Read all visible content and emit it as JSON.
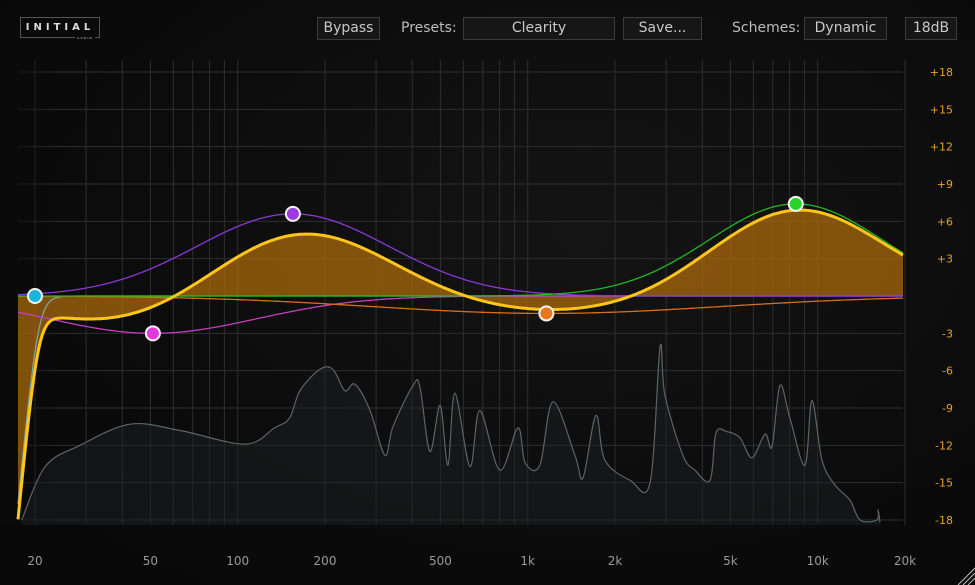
{
  "header": {
    "logo": "INITIAL",
    "logo_sub": "AUDIO",
    "bypass_label": "Bypass",
    "presets_label": "Presets:",
    "preset_value": "Clearity",
    "save_label": "Save...",
    "schemes_label": "Schemes:",
    "scheme_value": "Dynamic",
    "range_label": "18dB"
  },
  "colors": {
    "curve": "#ffc619",
    "fill": "#b06c0c",
    "grid": "#2e2e2e",
    "db_labels": "#e6a323",
    "spectrum": "#5a6468"
  },
  "chart_data": {
    "type": "line",
    "x_scale": "log",
    "xlim": [
      17.7,
      20000
    ],
    "ylim": [
      -18,
      18
    ],
    "x_ticks": [
      {
        "value": 20,
        "label": "20"
      },
      {
        "value": 50,
        "label": "50"
      },
      {
        "value": 100,
        "label": "100"
      },
      {
        "value": 200,
        "label": "200"
      },
      {
        "value": 500,
        "label": "500"
      },
      {
        "value": 1000,
        "label": "1k"
      },
      {
        "value": 2000,
        "label": "2k"
      },
      {
        "value": 5000,
        "label": "5k"
      },
      {
        "value": 10000,
        "label": "10k"
      },
      {
        "value": 20000,
        "label": "20k"
      }
    ],
    "y_ticks": [
      {
        "value": 18,
        "label": "+18"
      },
      {
        "value": 15,
        "label": "+15"
      },
      {
        "value": 12,
        "label": "+12"
      },
      {
        "value": 9,
        "label": "+9"
      },
      {
        "value": 6,
        "label": "+6"
      },
      {
        "value": 3,
        "label": "+3"
      },
      {
        "value": -3,
        "label": "-3"
      },
      {
        "value": -6,
        "label": "-6"
      },
      {
        "value": -9,
        "label": "-9"
      },
      {
        "value": -12,
        "label": "-12"
      },
      {
        "value": -15,
        "label": "-15"
      },
      {
        "value": -18,
        "label": "-18"
      }
    ],
    "grid": true,
    "bands": [
      {
        "type": "highpass",
        "freq": 20.5,
        "gain": 0,
        "order": 12,
        "color": "#17b6dc",
        "curve_color": "#7fa59a"
      },
      {
        "type": "bell",
        "freq": 51,
        "gain": -3.0,
        "width": 0.36,
        "color": "#e23ad9",
        "curve_color": "#c43fbf"
      },
      {
        "type": "bell",
        "freq": 155,
        "gain": 6.6,
        "width": 0.33,
        "color": "#9a3ae0",
        "curve_color": "#8a38d8"
      },
      {
        "type": "bell",
        "freq": 1160,
        "gain": -1.4,
        "width": 0.6,
        "color": "#e8761a",
        "curve_color": "#d86c18"
      },
      {
        "type": "bell",
        "freq": 8400,
        "gain": 7.4,
        "width": 0.3,
        "color": "#2ad22a",
        "curve_color": "#22b822"
      }
    ],
    "spectrum": [
      [
        18,
        -18
      ],
      [
        21.7,
        -13.7
      ],
      [
        28.6,
        -12
      ],
      [
        42.5,
        -10.3
      ],
      [
        63,
        -10.8
      ],
      [
        106,
        -11.9
      ],
      [
        134,
        -10.6
      ],
      [
        151,
        -9.8
      ],
      [
        164,
        -7.6
      ],
      [
        192,
        -5.9
      ],
      [
        213,
        -5.9
      ],
      [
        234,
        -7.6
      ],
      [
        254,
        -7.1
      ],
      [
        286,
        -9.2
      ],
      [
        322,
        -12.8
      ],
      [
        343,
        -10.5
      ],
      [
        402,
        -7.2
      ],
      [
        425,
        -7.3
      ],
      [
        460,
        -12.5
      ],
      [
        499,
        -8.8
      ],
      [
        531,
        -13.6
      ],
      [
        561,
        -7.8
      ],
      [
        632,
        -13.7
      ],
      [
        684,
        -9.2
      ],
      [
        801,
        -14
      ],
      [
        925,
        -10.6
      ],
      [
        980,
        -13.4
      ],
      [
        1101,
        -13.6
      ],
      [
        1222,
        -8.5
      ],
      [
        1455,
        -12.8
      ],
      [
        1552,
        -14.6
      ],
      [
        1719,
        -9.6
      ],
      [
        1846,
        -13.2
      ],
      [
        2254,
        -14.8
      ],
      [
        2642,
        -15
      ],
      [
        2860,
        -4.1
      ],
      [
        2974,
        -8
      ],
      [
        3430,
        -12.8
      ],
      [
        3775,
        -14
      ],
      [
        4255,
        -14.8
      ],
      [
        4460,
        -11
      ],
      [
        4865,
        -10.9
      ],
      [
        5395,
        -11.4
      ],
      [
        5935,
        -13
      ],
      [
        6580,
        -11.1
      ],
      [
        6955,
        -12.1
      ],
      [
        7410,
        -7.2
      ],
      [
        8020,
        -9.8
      ],
      [
        9035,
        -13.6
      ],
      [
        9550,
        -8.4
      ],
      [
        10350,
        -13.2
      ],
      [
        11480,
        -15.2
      ],
      [
        12920,
        -16.4
      ],
      [
        14000,
        -18
      ],
      [
        16000,
        -18
      ],
      [
        16150,
        -17.2
      ],
      [
        16400,
        -18.2
      ]
    ]
  }
}
